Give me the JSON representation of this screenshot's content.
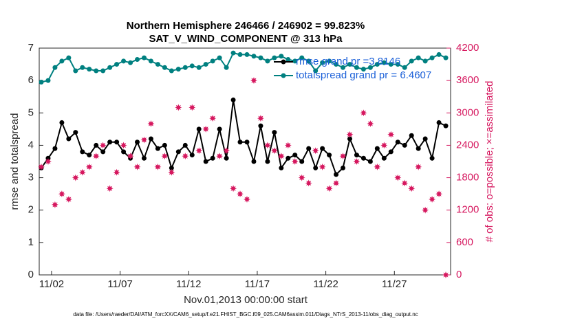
{
  "chart_data": {
    "type": "line",
    "title": "Northern Hemisphere 246466 / 246902 = 99.823%",
    "subtitle": "SAT_V_WIND_COMPONENT @ 313 hPa",
    "xlabel": "Nov.01,2013 00:00:00 start",
    "ylabel": "rmse and totalspread",
    "y2label": "# of obs: o=possible; ×=assimilated",
    "footnote": "data file: /Users/raeder/DAI/ATM_forcXX/CAM6_setup/f.e21.FHIST_BGC.f09_025.CAM6assim.011/Diags_NTrS_2013-11/obs_diag_output.nc",
    "x": [
      0.25,
      0.75,
      1.25,
      1.75,
      2.25,
      2.75,
      3.25,
      3.75,
      4.25,
      4.75,
      5.25,
      5.75,
      6.25,
      6.75,
      7.25,
      7.75,
      8.25,
      8.75,
      9.25,
      9.75,
      10.25,
      10.75,
      11.25,
      11.75,
      12.25,
      12.75,
      13.25,
      13.75,
      14.25,
      14.75,
      15.25,
      15.75,
      16.25,
      16.75,
      17.25,
      17.75,
      18.25,
      18.75,
      19.25,
      19.75,
      20.25,
      20.75,
      21.25,
      21.75,
      22.25,
      22.75,
      23.25,
      23.75,
      24.25,
      24.75,
      25.25,
      25.75,
      26.25,
      26.75,
      27.25,
      27.75,
      28.25,
      28.75,
      29.25,
      29.75
    ],
    "series": [
      {
        "name": "rmse grand pr =3.8146",
        "color": "#000000",
        "marker": "circle",
        "line": true,
        "values": [
          3.3,
          3.6,
          3.9,
          4.7,
          4.2,
          4.4,
          3.8,
          3.7,
          4.0,
          3.8,
          4.1,
          4.1,
          3.8,
          3.6,
          4.1,
          3.6,
          4.2,
          3.9,
          4.0,
          3.3,
          3.8,
          4.0,
          3.7,
          4.5,
          3.5,
          3.6,
          4.5,
          3.6,
          5.4,
          4.1,
          4.1,
          3.5,
          4.6,
          3.5,
          4.4,
          3.3,
          3.6,
          3.7,
          3.5,
          3.9,
          3.3,
          3.9,
          3.7,
          3.1,
          3.3,
          4.2,
          3.7,
          3.6,
          3.5,
          3.9,
          3.6,
          3.8,
          4.1,
          4.0,
          4.3,
          3.9,
          4.2,
          3.6,
          4.7,
          4.6
        ]
      },
      {
        "name": "totalspread grand pr = 6.4607",
        "color": "#008080",
        "marker": "circle",
        "line": true,
        "values": [
          5.95,
          6.0,
          6.4,
          6.6,
          6.7,
          6.3,
          6.4,
          6.35,
          6.3,
          6.3,
          6.4,
          6.5,
          6.6,
          6.55,
          6.65,
          6.7,
          6.6,
          6.5,
          6.4,
          6.3,
          6.35,
          6.4,
          6.45,
          6.4,
          6.5,
          6.6,
          6.7,
          6.4,
          6.85,
          6.8,
          6.8,
          6.75,
          6.7,
          6.6,
          6.7,
          6.75,
          6.65,
          6.6,
          6.7,
          6.6,
          6.3,
          6.55,
          6.6,
          6.5,
          6.4,
          6.5,
          6.4,
          6.35,
          6.4,
          6.5,
          6.55,
          6.5,
          6.5,
          6.4,
          6.6,
          6.7,
          6.6,
          6.7,
          6.8,
          6.7
        ]
      },
      {
        "color": "#d6185f",
        "marker": "star",
        "line": false,
        "axis": "y2",
        "values": [
          2000,
          2100,
          1300,
          1500,
          1400,
          1800,
          1900,
          2000,
          2200,
          2400,
          1600,
          1900,
          2400,
          2200,
          2000,
          2500,
          2800,
          2000,
          2200,
          1900,
          3100,
          2200,
          3100,
          2300,
          2700,
          2900,
          2200,
          2300,
          1600,
          1500,
          1400,
          3600,
          2900,
          2400,
          2300,
          2200,
          2400,
          2100,
          1800,
          1700,
          2300,
          2000,
          1600,
          1700,
          2200,
          2600,
          2100,
          3000,
          2800,
          2000,
          2400,
          2600,
          1800,
          1700,
          1600,
          2000,
          1200,
          1400,
          1500,
          0
        ]
      }
    ],
    "xlim": [
      0.1,
      30.1
    ],
    "xticks": [
      {
        "value": 1,
        "label": "11/02"
      },
      {
        "value": 6,
        "label": "11/07"
      },
      {
        "value": 11,
        "label": "11/12"
      },
      {
        "value": 16,
        "label": "11/17"
      },
      {
        "value": 21,
        "label": "11/22"
      },
      {
        "value": 26,
        "label": "11/27"
      }
    ],
    "ylim": [
      0,
      7
    ],
    "yticks": [
      0,
      1,
      2,
      3,
      4,
      5,
      6,
      7
    ],
    "y2lim": [
      0,
      4200
    ],
    "y2ticks": [
      0,
      600,
      1200,
      1800,
      2400,
      3000,
      3600,
      4200
    ],
    "y2color": "#d6185f",
    "legend_color": "#1a5fd8",
    "grid": false
  }
}
